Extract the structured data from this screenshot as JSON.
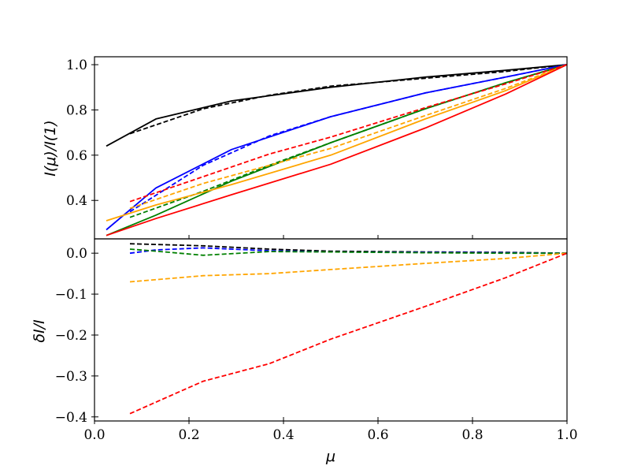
{
  "colors": {
    "black": "#000000",
    "blue": "#0000ff",
    "green": "#008000",
    "orange": "#ffa500",
    "red": "#ff0000"
  },
  "chart_data": [
    {
      "type": "line",
      "panel": "top",
      "xlabel": "",
      "ylabel": "I(μ)/I(1)",
      "xlim": [
        0.0,
        1.0
      ],
      "ylim": [
        0.23,
        1.035
      ],
      "yticks": [
        0.4,
        0.6,
        0.8,
        1.0
      ],
      "ytick_labels": [
        "0.4",
        "0.6",
        "0.8",
        "1.0"
      ],
      "grid": false,
      "series": [
        {
          "color": "black",
          "dash": false,
          "x": [
            0.025,
            0.13,
            0.29,
            0.5,
            0.7,
            0.87,
            1.0
          ],
          "y": [
            0.64,
            0.76,
            0.84,
            0.9,
            0.945,
            0.975,
            1.0
          ]
        },
        {
          "color": "black",
          "dash": true,
          "x": [
            0.075,
            0.23,
            0.37,
            0.5,
            0.7,
            0.87,
            1.0
          ],
          "y": [
            0.695,
            0.805,
            0.865,
            0.905,
            0.94,
            0.97,
            1.0
          ]
        },
        {
          "color": "blue",
          "dash": false,
          "x": [
            0.025,
            0.13,
            0.29,
            0.5,
            0.7,
            0.87,
            1.0
          ],
          "y": [
            0.27,
            0.455,
            0.625,
            0.77,
            0.875,
            0.945,
            1.0
          ]
        },
        {
          "color": "blue",
          "dash": true,
          "x": [
            0.075,
            0.23,
            0.37,
            0.5,
            0.7,
            0.87,
            1.0
          ],
          "y": [
            0.35,
            0.555,
            0.685,
            0.77,
            0.875,
            0.945,
            1.0
          ]
        },
        {
          "color": "green",
          "dash": false,
          "x": [
            0.025,
            0.13,
            0.29,
            0.5,
            0.7,
            0.87,
            1.0
          ],
          "y": [
            0.245,
            0.335,
            0.485,
            0.655,
            0.805,
            0.92,
            1.0
          ]
        },
        {
          "color": "green",
          "dash": true,
          "x": [
            0.075,
            0.23,
            0.37,
            0.5,
            0.7,
            0.87,
            1.0
          ],
          "y": [
            0.325,
            0.44,
            0.555,
            0.655,
            0.805,
            0.92,
            1.0
          ]
        },
        {
          "color": "orange",
          "dash": false,
          "x": [
            0.025,
            0.13,
            0.29,
            0.5,
            0.7,
            0.87,
            1.0
          ],
          "y": [
            0.31,
            0.38,
            0.47,
            0.6,
            0.76,
            0.885,
            1.0
          ]
        },
        {
          "color": "orange",
          "dash": true,
          "x": [
            0.075,
            0.23,
            0.37,
            0.5,
            0.7,
            0.87,
            1.0
          ],
          "y": [
            0.365,
            0.475,
            0.555,
            0.63,
            0.775,
            0.895,
            1.0
          ]
        },
        {
          "color": "red",
          "dash": false,
          "x": [
            0.025,
            0.13,
            0.29,
            0.5,
            0.7,
            0.87,
            1.0
          ],
          "y": [
            0.245,
            0.32,
            0.425,
            0.56,
            0.72,
            0.87,
            1.0
          ]
        },
        {
          "color": "red",
          "dash": true,
          "x": [
            0.075,
            0.23,
            0.37,
            0.5,
            0.7,
            0.87,
            1.0
          ],
          "y": [
            0.395,
            0.505,
            0.605,
            0.68,
            0.81,
            0.915,
            1.0
          ]
        }
      ]
    },
    {
      "type": "line",
      "panel": "bottom",
      "xlabel": "μ",
      "ylabel": "δI/I",
      "xlim": [
        0.0,
        1.0
      ],
      "ylim": [
        -0.41,
        0.035
      ],
      "xticks": [
        0.0,
        0.2,
        0.4,
        0.6,
        0.8,
        1.0
      ],
      "xtick_labels": [
        "0.0",
        "0.2",
        "0.4",
        "0.6",
        "0.8",
        "1.0"
      ],
      "yticks": [
        0.0,
        -0.1,
        -0.2,
        -0.3,
        -0.4
      ],
      "ytick_labels": [
        "0.0",
        "−0.1",
        "−0.2",
        "−0.3",
        "−0.4"
      ],
      "grid": false,
      "series": [
        {
          "color": "black",
          "dash": true,
          "x": [
            0.075,
            0.23,
            0.37,
            0.5,
            0.7,
            0.87,
            1.0
          ],
          "y": [
            0.023,
            0.018,
            0.01,
            0.005,
            0.003,
            0.002,
            0.0
          ]
        },
        {
          "color": "blue",
          "dash": true,
          "x": [
            0.075,
            0.13,
            0.23,
            0.37,
            0.5,
            0.7,
            0.87,
            1.0
          ],
          "y": [
            0.0,
            0.008,
            0.013,
            0.006,
            0.003,
            0.002,
            0.001,
            0.0
          ]
        },
        {
          "color": "green",
          "dash": true,
          "x": [
            0.075,
            0.13,
            0.23,
            0.37,
            0.5,
            0.7,
            0.87,
            1.0
          ],
          "y": [
            0.01,
            0.005,
            -0.005,
            0.004,
            0.003,
            0.001,
            0.0,
            0.0
          ]
        },
        {
          "color": "orange",
          "dash": true,
          "x": [
            0.075,
            0.23,
            0.37,
            0.5,
            0.7,
            0.87,
            1.0
          ],
          "y": [
            -0.07,
            -0.055,
            -0.05,
            -0.04,
            -0.025,
            -0.013,
            0.0
          ]
        },
        {
          "color": "red",
          "dash": true,
          "x": [
            0.075,
            0.23,
            0.37,
            0.5,
            0.7,
            0.87,
            1.0
          ],
          "y": [
            -0.392,
            -0.313,
            -0.27,
            -0.21,
            -0.13,
            -0.06,
            0.0
          ]
        }
      ]
    }
  ]
}
